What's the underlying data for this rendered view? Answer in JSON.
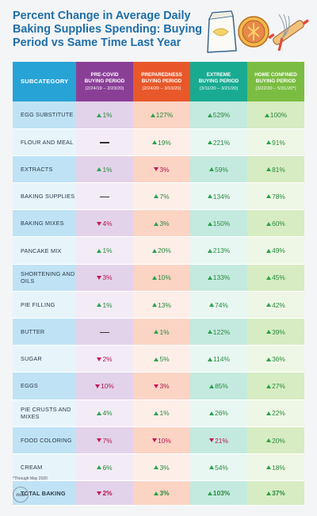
{
  "title": {
    "line1": "Percent Change in Average Daily",
    "line2": "Baking Supplies Spending: Buying",
    "line3": "Period vs Same Time Last Year"
  },
  "colors": {
    "title": "#1f6fa8",
    "subcategory_header": "#27a3d6",
    "pre_covid": "#8a3f97",
    "preparedness": "#e8582a",
    "extreme": "#19ab92",
    "home_confined": "#7bbd42",
    "increase": "#2aa34a",
    "decrease": "#c2185b"
  },
  "icons": [
    "flour-bag-icon",
    "pie-icon",
    "rolling-pin-whisk-icon"
  ],
  "chart_data": {
    "type": "table",
    "header": {
      "subcategory": "SUBCATEGORY",
      "periods": [
        {
          "name": "PRE-COVID BUYING PERIOD",
          "line1": "PRE-COVID",
          "line2": "BUYING PERIOD",
          "dates": "(2/24/19 – 2/23/20)"
        },
        {
          "name": "PREPAREDNESS BUYING PERIOD",
          "line1": "PREPAREDNESS",
          "line2": "BUYING PERIOD",
          "dates": "(2/24/20 – 3/10/20)"
        },
        {
          "name": "EXTREME BUYING PERIOD",
          "line1": "EXTREME",
          "line2": "BUYING PERIOD",
          "dates": "(3/11/20 – 3/21/20)"
        },
        {
          "name": "HOME CONFINED BUYING PERIOD",
          "line1": "HOME CONFINED",
          "line2": "BUYING PERIOD",
          "dates": "(3/22/20 – 5/31/20*)"
        }
      ]
    },
    "rows": [
      {
        "name": "EGG SUBSTITUTE",
        "values": [
          1,
          127,
          529,
          100
        ]
      },
      {
        "name": "FLOUR AND MEAL",
        "values": [
          null,
          19,
          221,
          91
        ]
      },
      {
        "name": "EXTRACTS",
        "values": [
          1,
          -3,
          59,
          81
        ]
      },
      {
        "name": "BAKING SUPPLIES",
        "values": [
          null,
          7,
          134,
          78
        ]
      },
      {
        "name": "BAKING MIXES",
        "values": [
          -4,
          3,
          150,
          60
        ]
      },
      {
        "name": "PANCAKE MIX",
        "values": [
          1,
          20,
          213,
          49
        ]
      },
      {
        "name": "SHORTENING AND OILS",
        "values": [
          -3,
          10,
          133,
          45
        ]
      },
      {
        "name": "PIE FILLING",
        "values": [
          1,
          13,
          74,
          42
        ]
      },
      {
        "name": "BUTTER",
        "values": [
          null,
          1,
          122,
          39
        ]
      },
      {
        "name": "SUGAR",
        "values": [
          -2,
          5,
          114,
          36
        ]
      },
      {
        "name": "EGGS",
        "values": [
          -10,
          -3,
          85,
          27
        ]
      },
      {
        "name": "PIE CRUSTS AND MIXES",
        "values": [
          4,
          1,
          26,
          22
        ]
      },
      {
        "name": "FOOD COLORING",
        "values": [
          -7,
          -10,
          -21,
          20
        ]
      },
      {
        "name": "CREAM",
        "values": [
          6,
          3,
          54,
          18
        ]
      }
    ],
    "total": {
      "name": "TOTAL BAKING",
      "values": [
        -2,
        3,
        103,
        37
      ]
    },
    "unit": "%"
  },
  "footnote": "*Through May 2020",
  "logo_text": "ncs"
}
